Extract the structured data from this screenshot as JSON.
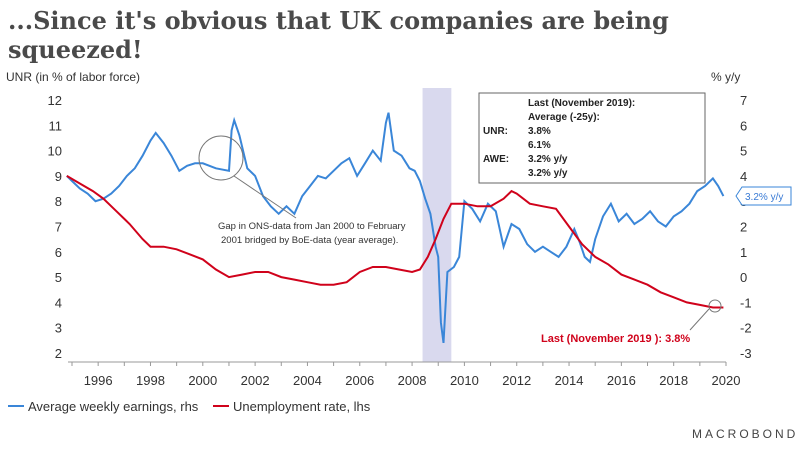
{
  "title": "...Since it's obvious that UK companies are being squeezed!",
  "chart_data": {
    "type": "line",
    "left_axis": {
      "label": "UNR (in % of labor force)",
      "range": [
        2,
        12
      ],
      "ticks": [
        "2",
        "3",
        "4",
        "5",
        "6",
        "7",
        "8",
        "9",
        "10",
        "11",
        "12"
      ]
    },
    "right_axis": {
      "label": "% y/y",
      "range": [
        -3,
        7
      ],
      "ticks": [
        "-3",
        "-2",
        "-1",
        "0",
        "1",
        "2",
        "3",
        "4",
        "5",
        "6",
        "7"
      ]
    },
    "x_axis": {
      "range": [
        1995,
        2020
      ],
      "ticks": [
        "1996",
        "1998",
        "2000",
        "2002",
        "2004",
        "2006",
        "2008",
        "2010",
        "2012",
        "2014",
        "2016",
        "2018",
        "2020"
      ]
    },
    "recession_band": {
      "start": 2008.4,
      "end": 2009.5
    },
    "series": [
      {
        "name": "Average weekly earnings, rhs",
        "axis": "right",
        "color": "#3a86d8",
        "x": [
          1994.8,
          1995.0,
          1995.3,
          1995.6,
          1995.9,
          1996.2,
          1996.5,
          1996.8,
          1997.1,
          1997.4,
          1997.7,
          1998.0,
          1998.2,
          1998.5,
          1998.8,
          1999.1,
          1999.4,
          1999.7,
          2000.0,
          2000.5,
          2001.0,
          2001.1,
          2001.2,
          2001.4,
          2001.7,
          2002.0,
          2002.3,
          2002.6,
          2002.9,
          2003.2,
          2003.5,
          2003.8,
          2004.1,
          2004.4,
          2004.7,
          2005.0,
          2005.3,
          2005.6,
          2005.9,
          2006.2,
          2006.5,
          2006.8,
          2007.0,
          2007.1,
          2007.3,
          2007.6,
          2007.9,
          2008.1,
          2008.3,
          2008.5,
          2008.7,
          2008.9,
          2009.0,
          2009.1,
          2009.2,
          2009.35,
          2009.6,
          2009.8,
          2010.0,
          2010.3,
          2010.6,
          2010.9,
          2011.2,
          2011.5,
          2011.8,
          2012.1,
          2012.4,
          2012.7,
          2013.0,
          2013.3,
          2013.6,
          2013.9,
          2014.2,
          2014.4,
          2014.6,
          2014.8,
          2015.0,
          2015.3,
          2015.6,
          2015.9,
          2016.2,
          2016.5,
          2016.8,
          2017.1,
          2017.4,
          2017.7,
          2018.0,
          2018.3,
          2018.6,
          2018.9,
          2019.2,
          2019.5,
          2019.7,
          2019.9
        ],
        "values": [
          4.0,
          3.8,
          3.5,
          3.3,
          3.0,
          3.1,
          3.3,
          3.6,
          4.0,
          4.3,
          4.8,
          5.4,
          5.7,
          5.3,
          4.8,
          4.2,
          4.4,
          4.5,
          4.5,
          4.3,
          4.2,
          5.8,
          6.2,
          5.6,
          4.3,
          4.0,
          3.2,
          2.8,
          2.5,
          2.8,
          2.5,
          3.2,
          3.6,
          4.0,
          3.9,
          4.2,
          4.5,
          4.7,
          4.0,
          4.5,
          5.0,
          4.6,
          6.1,
          6.5,
          5.0,
          4.8,
          4.3,
          4.2,
          3.8,
          3.1,
          2.5,
          1.2,
          0.8,
          -1.8,
          -2.6,
          0.2,
          0.4,
          0.8,
          3.0,
          2.7,
          2.2,
          2.9,
          2.6,
          1.2,
          2.1,
          1.9,
          1.3,
          1.0,
          1.2,
          1.0,
          0.8,
          1.2,
          1.9,
          1.4,
          0.8,
          0.6,
          1.5,
          2.4,
          2.9,
          2.2,
          2.5,
          2.1,
          2.3,
          2.6,
          2.2,
          2.0,
          2.4,
          2.6,
          2.9,
          3.4,
          3.6,
          3.9,
          3.6,
          3.2
        ]
      },
      {
        "name": "Unemployment rate, lhs",
        "axis": "left",
        "color": "#d0021b",
        "x": [
          1994.8,
          1995.3,
          1995.8,
          1996.2,
          1996.7,
          1997.2,
          1997.7,
          1998.0,
          1998.5,
          1999.0,
          1999.5,
          2000.0,
          2000.5,
          2001.0,
          2001.5,
          2002.0,
          2002.5,
          2003.0,
          2003.5,
          2004.0,
          2004.5,
          2005.0,
          2005.5,
          2006.0,
          2006.5,
          2007.0,
          2007.5,
          2008.0,
          2008.3,
          2008.6,
          2008.9,
          2009.2,
          2009.5,
          2010.0,
          2010.5,
          2011.0,
          2011.5,
          2011.8,
          2012.0,
          2012.5,
          2013.0,
          2013.5,
          2014.0,
          2014.5,
          2015.0,
          2015.5,
          2016.0,
          2016.5,
          2017.0,
          2017.5,
          2018.0,
          2018.5,
          2019.0,
          2019.5,
          2019.9
        ],
        "values": [
          9.0,
          8.7,
          8.4,
          8.1,
          7.6,
          7.1,
          6.5,
          6.2,
          6.2,
          6.1,
          5.9,
          5.7,
          5.3,
          5.0,
          5.1,
          5.2,
          5.2,
          5.0,
          4.9,
          4.8,
          4.7,
          4.7,
          4.8,
          5.2,
          5.4,
          5.4,
          5.3,
          5.2,
          5.3,
          5.8,
          6.5,
          7.3,
          7.9,
          7.9,
          7.8,
          7.8,
          8.1,
          8.4,
          8.3,
          7.9,
          7.8,
          7.7,
          7.0,
          6.3,
          5.8,
          5.5,
          5.1,
          4.9,
          4.7,
          4.4,
          4.2,
          4.0,
          3.9,
          3.8,
          3.8
        ]
      }
    ],
    "annotations": {
      "gap_note_line1": "Gap in ONS-data from Jan 2000 to February",
      "gap_note_line2": "2001 bridged by BoE-data (year average).",
      "box": {
        "header": "Last (November 2019):",
        "subheader": "Average (-25y):",
        "unr_label": "UNR:",
        "unr_last": "3.8%",
        "unr_avg": "6.1%",
        "awe_label": "AWE:",
        "awe_last": "3.2% y/y",
        "awe_avg": "3.2% y/y"
      },
      "unr_last_label": "Last (November 2019 ): 3.8%",
      "awe_tag": "3.2% y/y"
    },
    "legend": [
      "Average weekly earnings, rhs",
      "Unemployment rate, lhs"
    ],
    "legend_position": "bottom-left"
  },
  "brand": "MACROBOND"
}
